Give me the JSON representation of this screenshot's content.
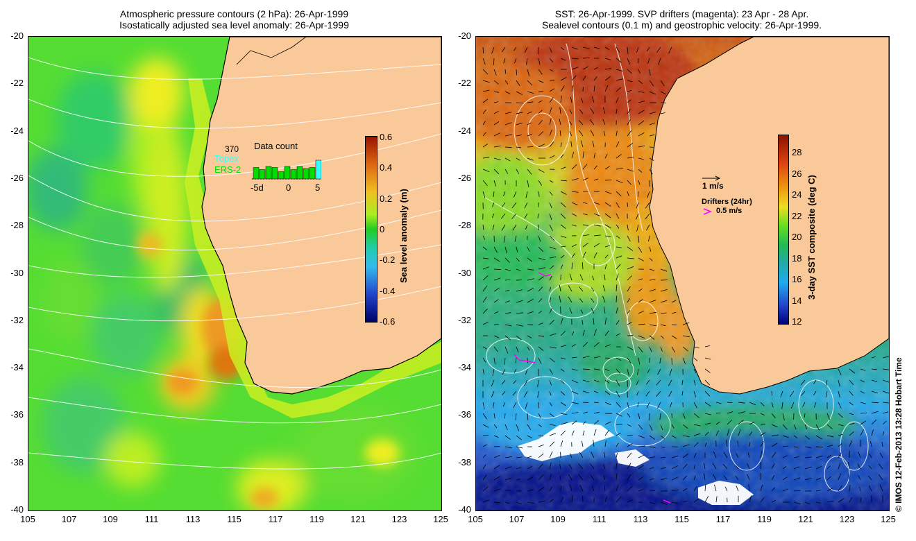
{
  "left_panel": {
    "title_line1": "Atmospheric pressure contours (2 hPa): 26-Apr-1999",
    "title_line2": "Isostatically adjusted sea level anomaly: 26-Apr-1999",
    "colorbar_label": "Sea level anomaly (m)",
    "colorbar_ticks": [
      "0.6",
      "0.4",
      "0.2",
      "0",
      "-0.2",
      "-0.4",
      "-0.6"
    ],
    "data_count": {
      "title": "Data count",
      "value": "370",
      "topex_label": "Topex",
      "ers2_label": "ERS-2",
      "axis_labels": [
        "-5d",
        "0",
        "5"
      ],
      "bars": [
        0.55,
        0.45,
        0.6,
        0.55,
        0.35,
        0.6,
        0.45,
        0.6,
        0.5,
        0.55
      ],
      "topex_bar": 0.9
    },
    "colors": {
      "land": "#f9c99a",
      "coast": "#000000",
      "contour": "#ffffff",
      "topex": "#33ffff",
      "ers2": "#00dd00"
    }
  },
  "right_panel": {
    "title_line1": "SST: 26-Apr-1999. SVP drifters (magenta): 23 Apr - 28 Apr.",
    "title_line2": "Sealevel contours (0.1 m) and geostrophic velocity: 26-Apr-1999.",
    "colorbar_label": "3-day SST composite (deg C)",
    "colorbar_ticks": [
      "28",
      "26",
      "24",
      "22",
      "20",
      "18",
      "16",
      "14",
      "12"
    ],
    "velocity_scale_label": "1 m/s",
    "drifters_title": "Drifters (24hr)",
    "drifters_scale_label": "0.5 m/s",
    "colors": {
      "land": "#f9c99a",
      "drifter": "#ff00ff",
      "contour": "#ffffff"
    }
  },
  "axes": {
    "y_ticks": [
      "-20",
      "-22",
      "-24",
      "-26",
      "-28",
      "-30",
      "-32",
      "-34",
      "-36",
      "-38",
      "-40"
    ],
    "x_ticks": [
      "105",
      "107",
      "109",
      "111",
      "113",
      "115",
      "117",
      "119",
      "121",
      "123",
      "125"
    ]
  },
  "credit": "© IMOS 12-Feb-2013 13:28 Hobart Time"
}
